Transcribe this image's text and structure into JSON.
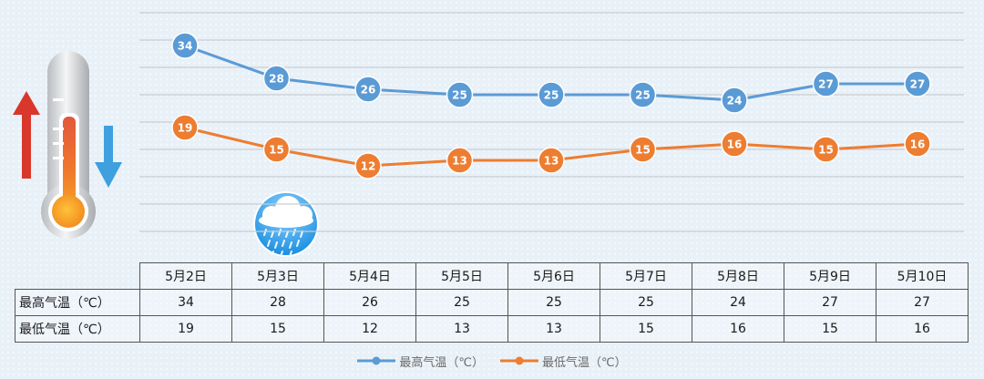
{
  "chart_data": {
    "type": "line",
    "categories": [
      "5月2日",
      "5月3日",
      "5月4日",
      "5月5日",
      "5月6日",
      "5月7日",
      "5月8日",
      "5月9日",
      "5月10日"
    ],
    "series": [
      {
        "name": "最高气温（℃）",
        "values": [
          34,
          28,
          26,
          25,
          25,
          25,
          24,
          27,
          27
        ],
        "color": "#5b9bd5"
      },
      {
        "name": "最低气温（℃）",
        "values": [
          19,
          15,
          12,
          13,
          13,
          15,
          16,
          15,
          16
        ],
        "color": "#ed7d31"
      }
    ],
    "ylim": [
      0,
      40
    ],
    "grid": true,
    "legend_position": "bottom",
    "table": {
      "rows": [
        {
          "label": "最高气温（℃）",
          "values": [
            "34",
            "28",
            "26",
            "25",
            "25",
            "25",
            "24",
            "27",
            "27"
          ]
        },
        {
          "label": "最低气温（℃）",
          "values": [
            "19",
            "15",
            "12",
            "13",
            "13",
            "15",
            "16",
            "15",
            "16"
          ]
        }
      ]
    },
    "weather_icon": {
      "name": "rain-cloud-icon",
      "category": "5月3日"
    }
  },
  "decor": {
    "thermometer": "thermometer-icon",
    "up_arrow": "up-arrow-icon",
    "down_arrow": "down-arrow-icon",
    "up_color": "#d9372b",
    "down_color": "#3ea0de"
  }
}
